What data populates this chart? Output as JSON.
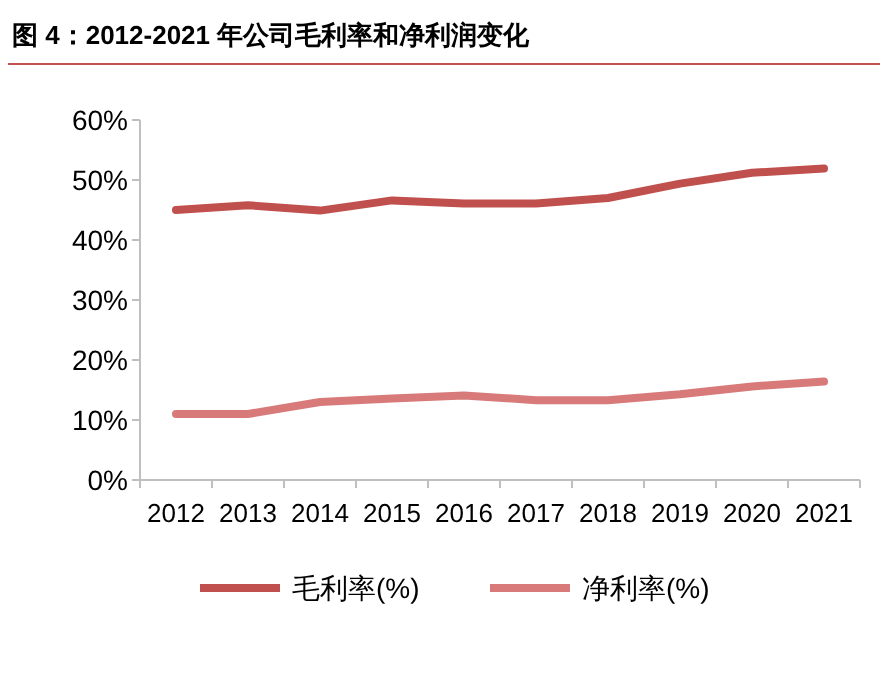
{
  "chart_data": {
    "type": "line",
    "title": "图 4：2012-2021 年公司毛利率和净利润变化",
    "categories": [
      "2012",
      "2013",
      "2014",
      "2015",
      "2016",
      "2017",
      "2018",
      "2019",
      "2020",
      "2021"
    ],
    "series": [
      {
        "name": "毛利率(%)",
        "color": "#c0504d",
        "values": [
          45.0,
          45.8,
          44.9,
          46.6,
          46.1,
          46.1,
          47.0,
          49.4,
          51.2,
          51.9
        ]
      },
      {
        "name": "净利率(%)",
        "color": "#d87a7a",
        "values": [
          11.0,
          11.0,
          13.0,
          13.6,
          14.1,
          13.3,
          13.3,
          14.3,
          15.6,
          16.4
        ]
      }
    ],
    "ylim": [
      0,
      60
    ],
    "yticks": [
      {
        "value": 0,
        "label": "0%"
      },
      {
        "value": 10,
        "label": "10%"
      },
      {
        "value": 20,
        "label": "20%"
      },
      {
        "value": 30,
        "label": "30%"
      },
      {
        "value": 40,
        "label": "40%"
      },
      {
        "value": 50,
        "label": "50%"
      },
      {
        "value": 60,
        "label": "60%"
      }
    ],
    "grid": false,
    "legend": "bottom",
    "marker": "none",
    "line_style": "solid"
  }
}
